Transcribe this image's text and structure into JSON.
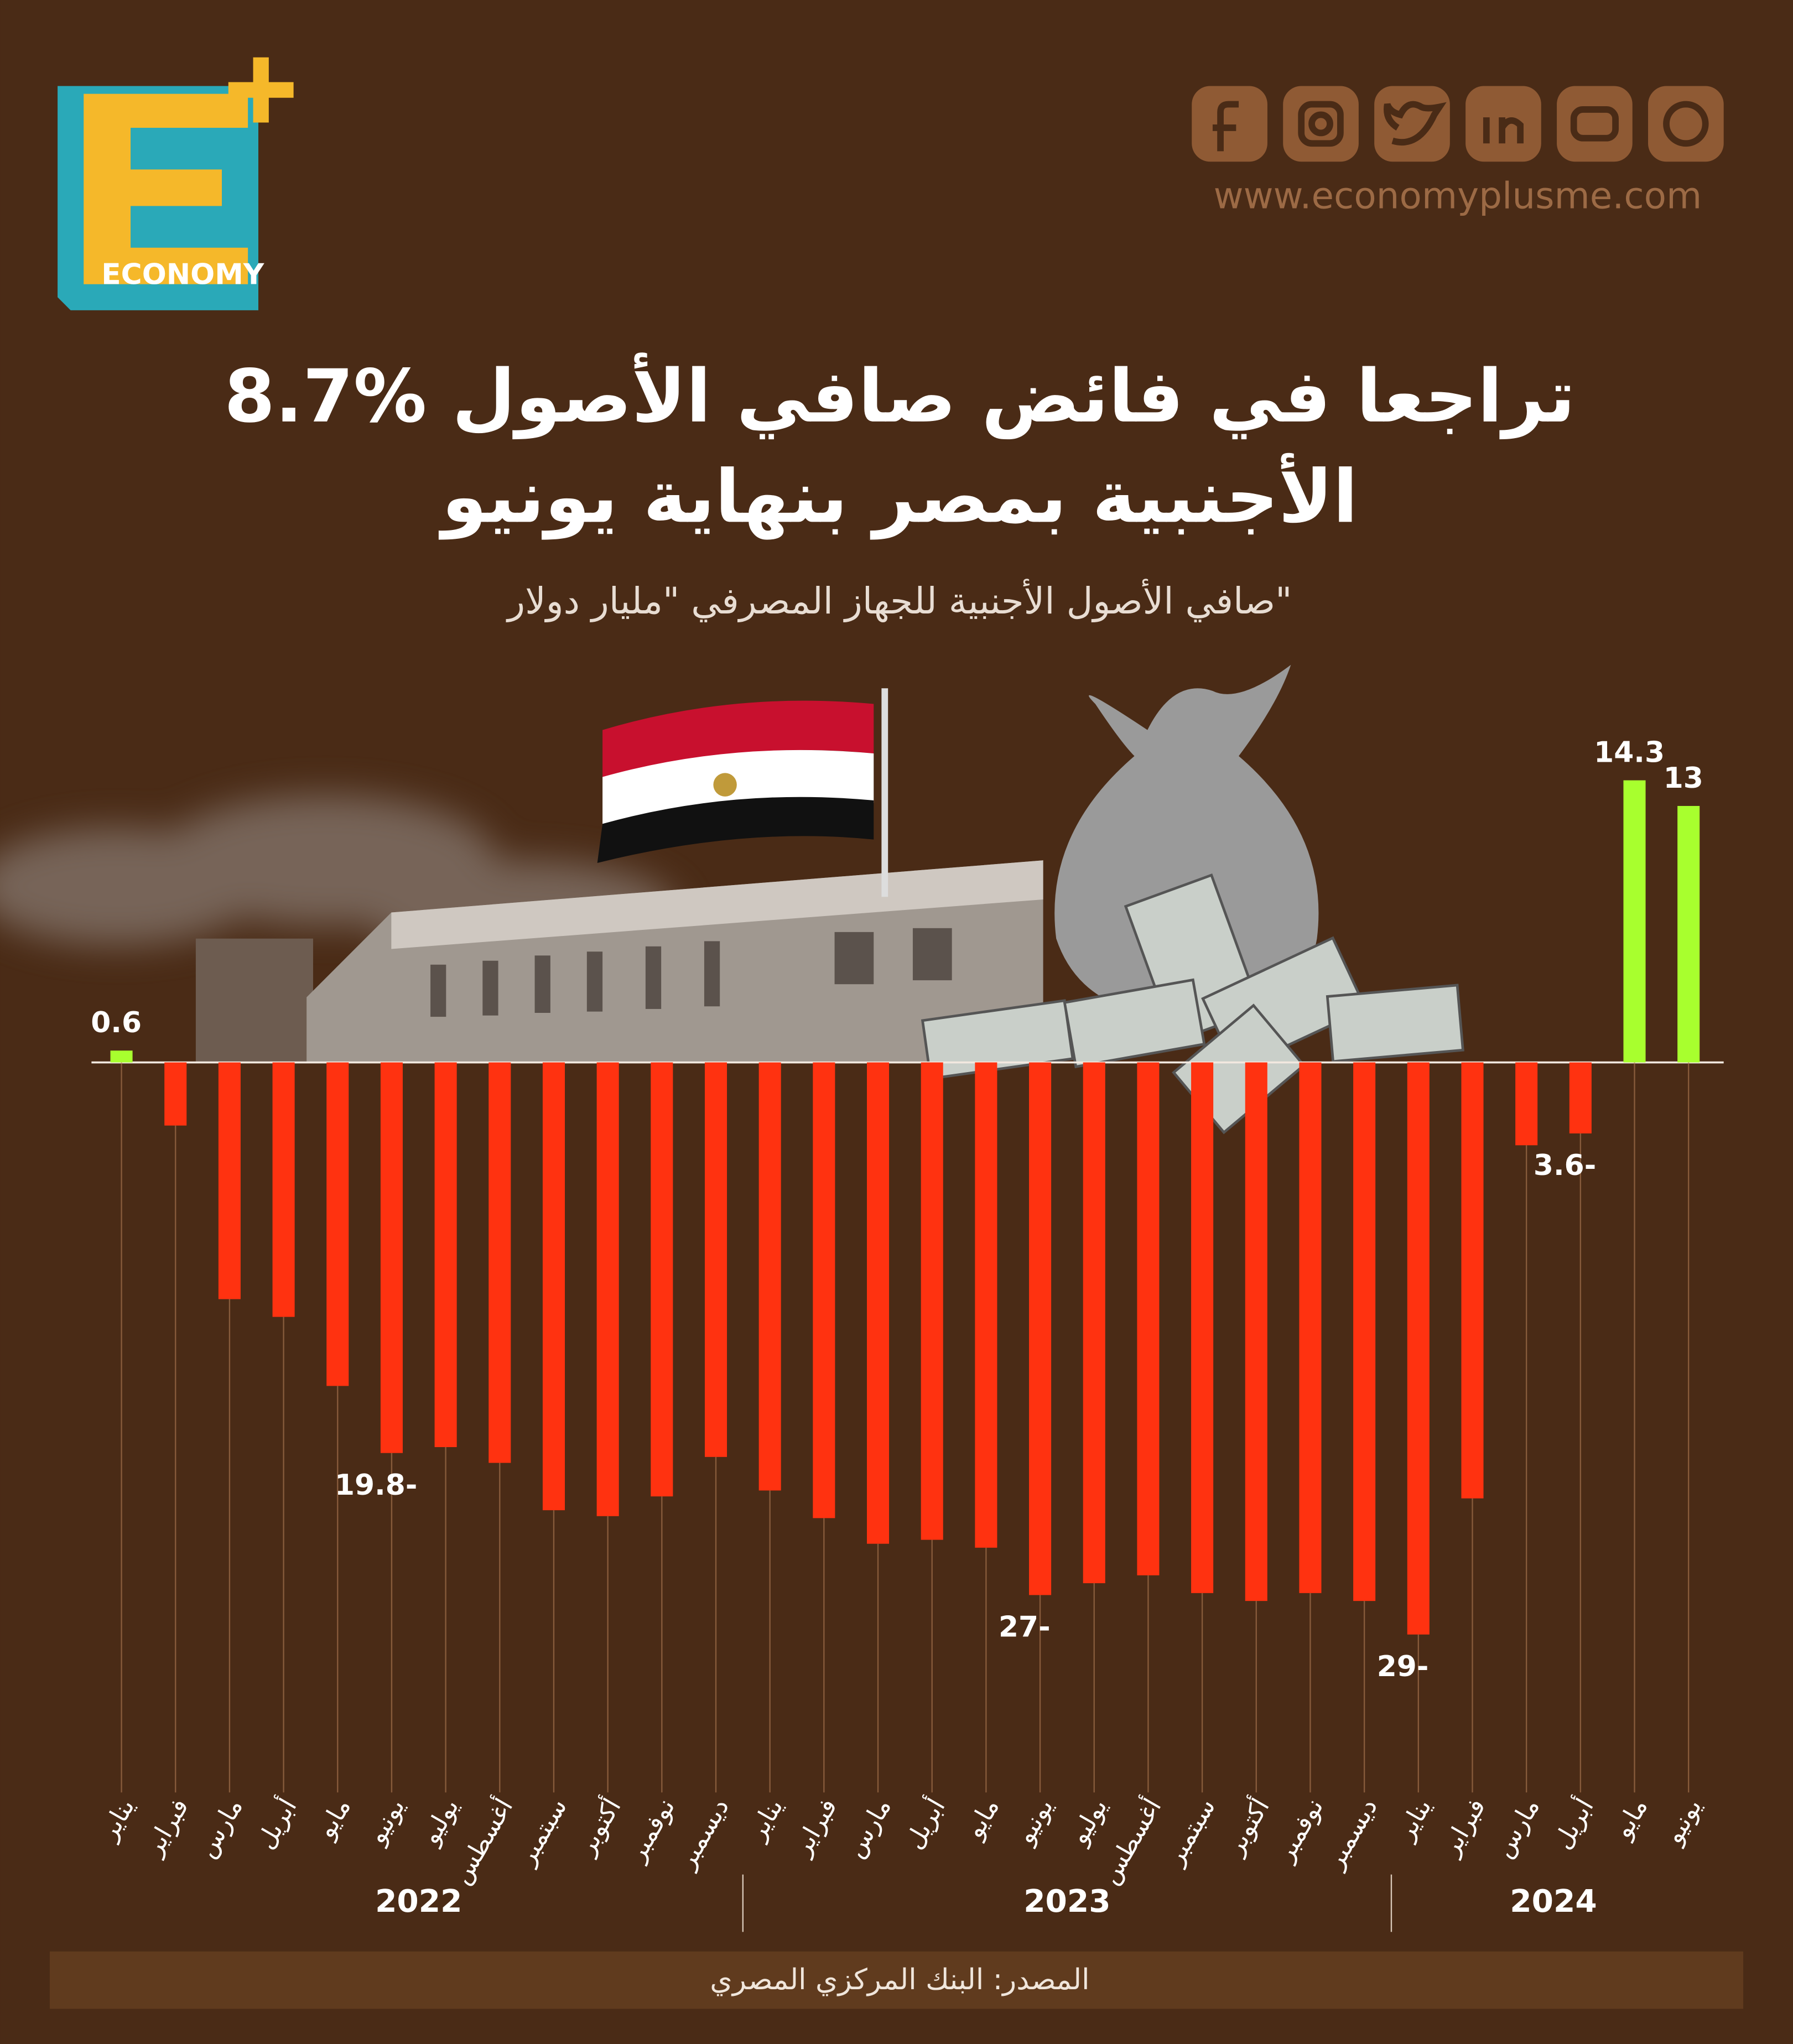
{
  "header": {
    "brand": "ECONOMY",
    "website": "www.economyplusme.com"
  },
  "chart_data": {
    "type": "bar",
    "title": [
      "8.7% تراجعا في فائض صافي الأصول",
      "الأجنبية بمصر بنهاية يونيو"
    ],
    "subtitle": "صافي الأصول الأجنبية للجهاز المصرفي \"مليار دولار\"",
    "ylim": [
      -30,
      15
    ],
    "positive_color": "#a8ff2e",
    "negative_color": "#ff3210",
    "groups": [
      {
        "label": "2022",
        "categories": [
          "يناير",
          "فبراير",
          "مارس",
          "أبريل",
          "مايو",
          "يونيو",
          "يوليو",
          "أغسطس",
          "سبتمبر",
          "أكتوبر",
          "نوفمبر",
          "ديسمبر"
        ],
        "values": [
          0.6,
          -3.2,
          -12.0,
          -12.9,
          -16.4,
          -19.8,
          -19.5,
          -20.3,
          -22.7,
          -23.0,
          -22.0,
          -20.0
        ],
        "value_labels": [
          "0.6",
          null,
          null,
          null,
          null,
          "19.8-",
          null,
          null,
          null,
          null,
          null,
          null
        ]
      },
      {
        "label": "2023",
        "categories": [
          "يناير",
          "فبراير",
          "مارس",
          "أبريل",
          "مايو",
          "يونيو",
          "يوليو",
          "أغسطس",
          "سبتمبر",
          "أكتوبر",
          "نوفمبر",
          "ديسمبر"
        ],
        "values": [
          -21.7,
          -23.1,
          -24.4,
          -24.2,
          -24.6,
          -27,
          -26.4,
          -26.0,
          -26.9,
          -27.3,
          -26.9,
          -27.3
        ],
        "value_labels": [
          null,
          null,
          null,
          null,
          null,
          "27-",
          null,
          null,
          null,
          null,
          null,
          null
        ]
      },
      {
        "label": "2024",
        "categories": [
          "يناير",
          "فبراير",
          "مارس",
          "أبريل",
          "مايو",
          "يونيو"
        ],
        "values": [
          -29,
          -22.1,
          -4.2,
          -3.6,
          14.3,
          13
        ],
        "value_labels": [
          "29-",
          null,
          null,
          "3.6-",
          "14.3",
          "13"
        ]
      }
    ],
    "source": "المصدر: البنك المركزي المصري"
  }
}
